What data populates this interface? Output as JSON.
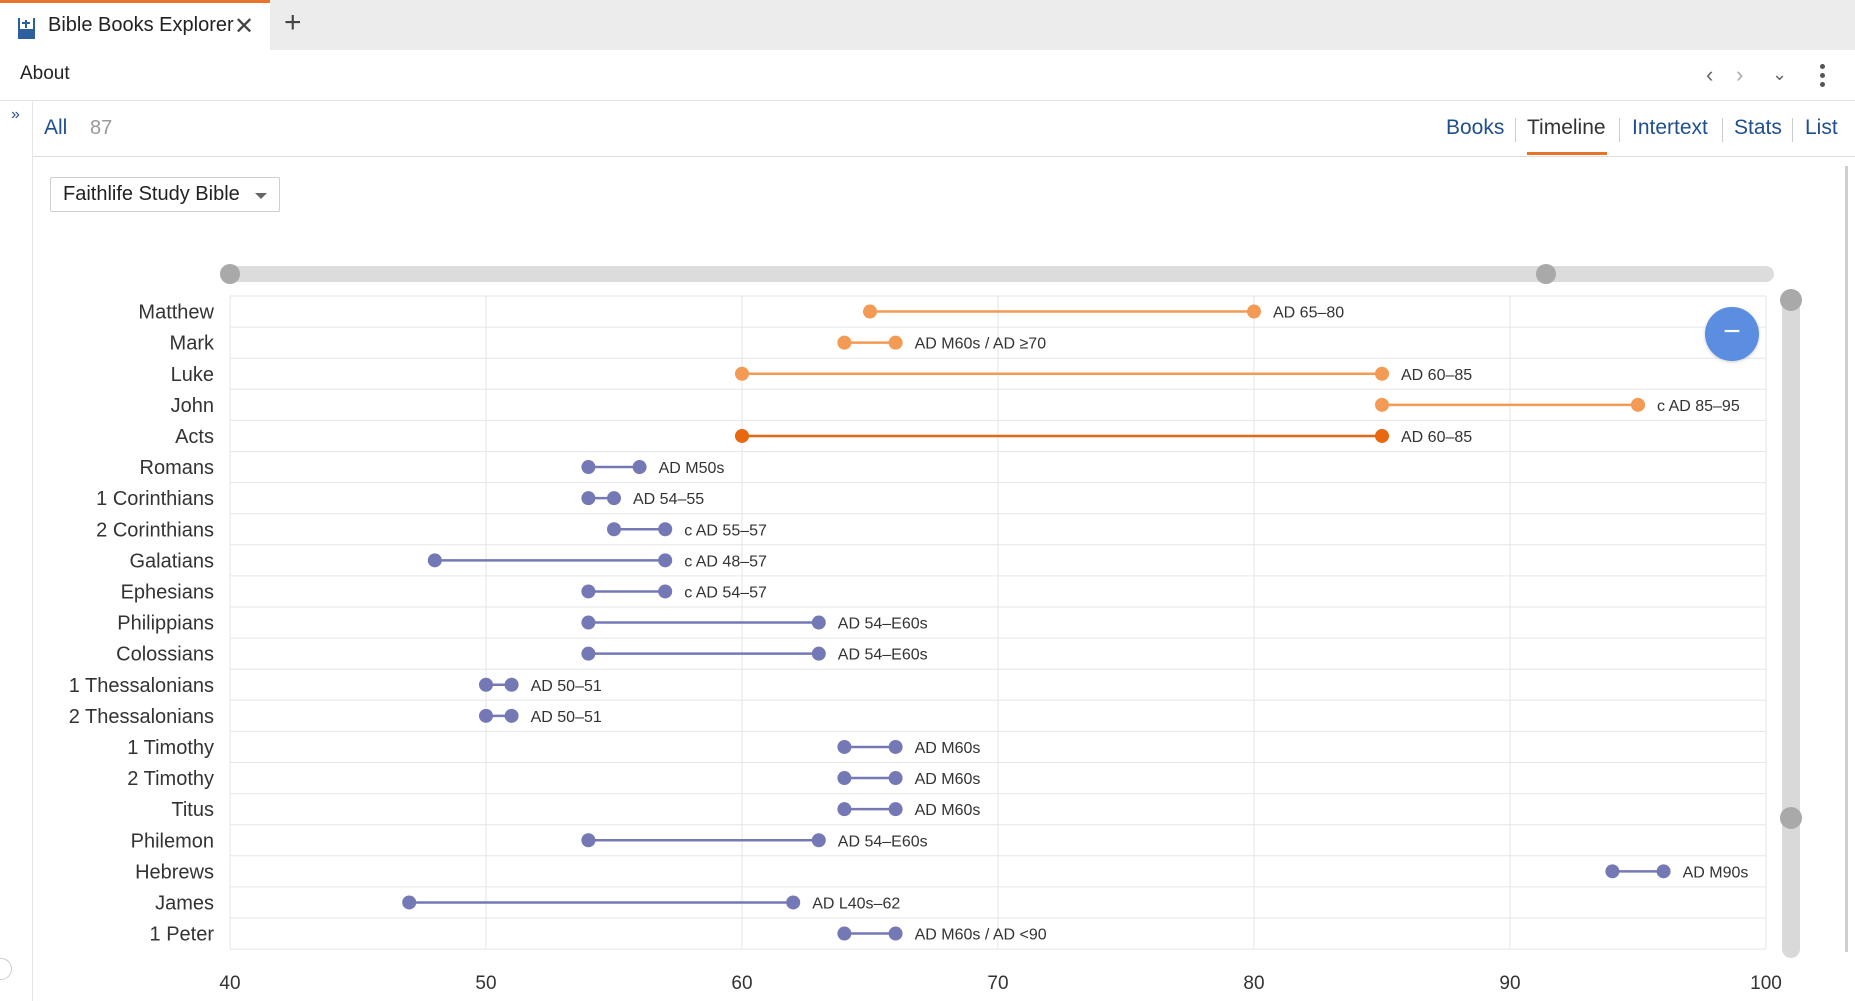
{
  "tab": {
    "title": "Bible Books Explorer",
    "close_glyph": "✕",
    "add_glyph": "+",
    "icon": "bible-book-icon"
  },
  "toolbar": {
    "about": "About",
    "back_glyph": "‹",
    "forward_glyph": "›",
    "history_glyph": "⌄"
  },
  "rail": {
    "expand_glyph": "»"
  },
  "filter": {
    "all_label": "All",
    "count": "87"
  },
  "views": [
    {
      "label": "Books",
      "active": false
    },
    {
      "label": "Timeline",
      "active": true
    },
    {
      "label": "Intertext",
      "active": false
    },
    {
      "label": "Stats",
      "active": false
    },
    {
      "label": "List",
      "active": false
    }
  ],
  "source_dropdown": {
    "value": "Faithlife Study Bible"
  },
  "collapse_button": {
    "glyph": "−"
  },
  "colors": {
    "gospels": "#f39a55",
    "acts": "#e8670f",
    "epistles": "#7479b6",
    "accent": "#e8742a",
    "link": "#1f4f8f",
    "fab": "#5b8ee0"
  },
  "chart_data": {
    "type": "range",
    "x_range": [
      40,
      100
    ],
    "x_ticks": [
      40,
      50,
      60,
      70,
      80,
      90,
      100
    ],
    "grid": true,
    "rows": [
      {
        "book": "Matthew",
        "start": 65,
        "end": 80,
        "label": "AD 65–80",
        "group": "gospels"
      },
      {
        "book": "Mark",
        "start": 64,
        "end": 66,
        "label": "AD M60s / AD ≥70",
        "group": "gospels"
      },
      {
        "book": "Luke",
        "start": 60,
        "end": 85,
        "label": "AD 60–85",
        "group": "gospels"
      },
      {
        "book": "John",
        "start": 85,
        "end": 95,
        "label": "c AD 85–95",
        "group": "gospels"
      },
      {
        "book": "Acts",
        "start": 60,
        "end": 85,
        "label": "AD 60–85",
        "group": "acts"
      },
      {
        "book": "Romans",
        "start": 54,
        "end": 56,
        "label": "AD M50s",
        "group": "epistles"
      },
      {
        "book": "1 Corinthians",
        "start": 54,
        "end": 55,
        "label": "AD 54–55",
        "group": "epistles"
      },
      {
        "book": "2 Corinthians",
        "start": 55,
        "end": 57,
        "label": "c AD 55–57",
        "group": "epistles"
      },
      {
        "book": "Galatians",
        "start": 48,
        "end": 57,
        "label": "c AD 48–57",
        "group": "epistles"
      },
      {
        "book": "Ephesians",
        "start": 54,
        "end": 57,
        "label": "c AD 54–57",
        "group": "epistles"
      },
      {
        "book": "Philippians",
        "start": 54,
        "end": 63,
        "label": "AD 54–E60s",
        "group": "epistles"
      },
      {
        "book": "Colossians",
        "start": 54,
        "end": 63,
        "label": "AD 54–E60s",
        "group": "epistles"
      },
      {
        "book": "1 Thessalonians",
        "start": 50,
        "end": 51,
        "label": "AD 50–51",
        "group": "epistles"
      },
      {
        "book": "2 Thessalonians",
        "start": 50,
        "end": 51,
        "label": "AD 50–51",
        "group": "epistles"
      },
      {
        "book": "1 Timothy",
        "start": 64,
        "end": 66,
        "label": "AD M60s",
        "group": "epistles"
      },
      {
        "book": "2 Timothy",
        "start": 64,
        "end": 66,
        "label": "AD M60s",
        "group": "epistles"
      },
      {
        "book": "Titus",
        "start": 64,
        "end": 66,
        "label": "AD M60s",
        "group": "epistles"
      },
      {
        "book": "Philemon",
        "start": 54,
        "end": 63,
        "label": "AD 54–E60s",
        "group": "epistles"
      },
      {
        "book": "Hebrews",
        "start": 94,
        "end": 96,
        "label": "AD M90s",
        "group": "epistles"
      },
      {
        "book": "James",
        "start": 47,
        "end": 62,
        "label": "AD L40s–62",
        "group": "epistles"
      },
      {
        "book": "1 Peter",
        "start": 64,
        "end": 66,
        "label": "AD M60s / AD <90",
        "group": "epistles"
      }
    ]
  }
}
